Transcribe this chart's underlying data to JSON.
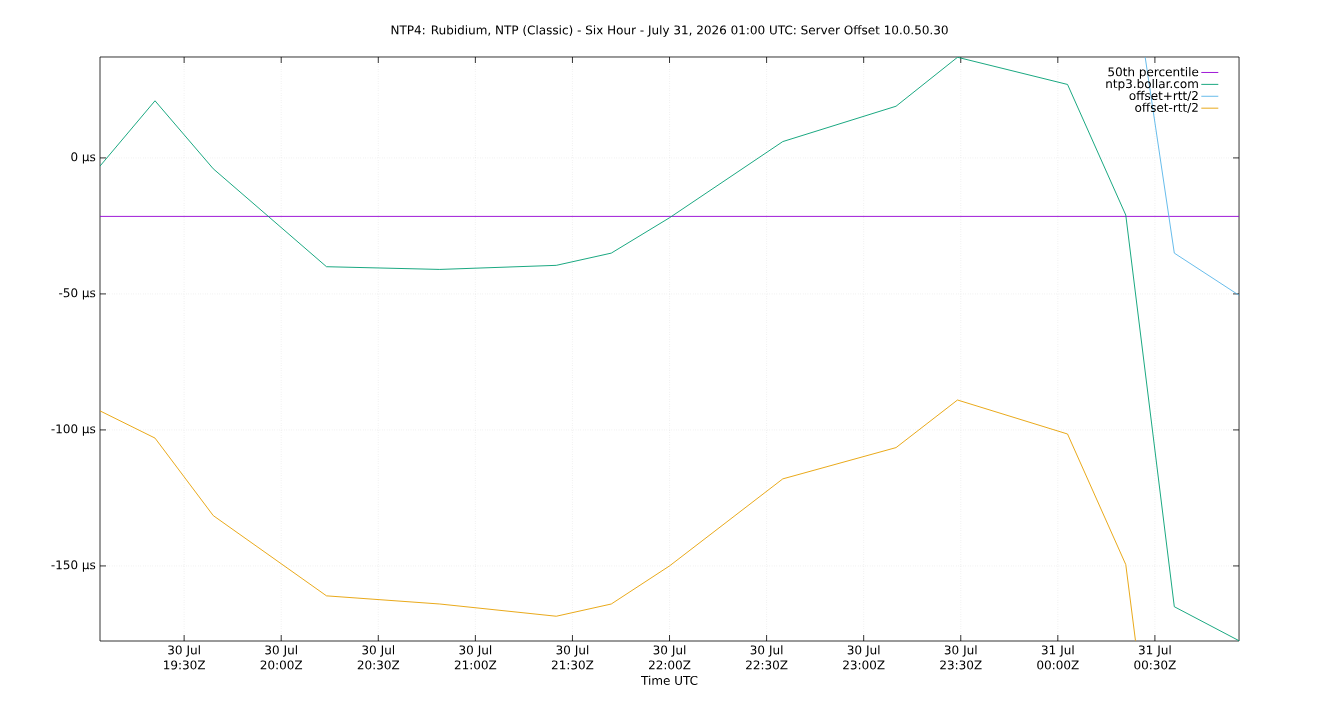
{
  "chart_data": {
    "type": "line",
    "title": "NTP4: Rubidium, NTP (Classic) - Six Hour - July 31, 2026 01:00 UTC: Server Offset 10.0.50.30",
    "xlabel": "Time UTC",
    "xlim": [
      "2026-07-30T19:04",
      "2026-07-31T00:56"
    ],
    "xticks": [
      {
        "value": "2026-07-30T19:30",
        "label": "30 Jul 19:30Z"
      },
      {
        "value": "2026-07-30T20:00",
        "label": "30 Jul 20:00Z"
      },
      {
        "value": "2026-07-30T20:30",
        "label": "30 Jul 20:30Z"
      },
      {
        "value": "2026-07-30T21:00",
        "label": "30 Jul 21:00Z"
      },
      {
        "value": "2026-07-30T21:30",
        "label": "30 Jul 21:30Z"
      },
      {
        "value": "2026-07-30T22:00",
        "label": "30 Jul 22:00Z"
      },
      {
        "value": "2026-07-30T22:30",
        "label": "30 Jul 22:30Z"
      },
      {
        "value": "2026-07-30T23:00",
        "label": "30 Jul 23:00Z"
      },
      {
        "value": "2026-07-30T23:30",
        "label": "30 Jul 23:30Z"
      },
      {
        "value": "2026-07-31T00:00",
        "label": "31 Jul 00:00Z"
      },
      {
        "value": "2026-07-31T00:30",
        "label": "31 Jul 00:30Z"
      }
    ],
    "ylim": [
      -177.6,
      37.1
    ],
    "yticks": [
      {
        "value": -150,
        "label": "-150 µs"
      },
      {
        "value": -100,
        "label": "-100 µs"
      },
      {
        "value": -50,
        "label": "-50 µs"
      },
      {
        "value": 0,
        "label": "0 µs"
      }
    ],
    "grid": true,
    "legend": "top right",
    "line_style": "solid",
    "series": [
      {
        "name": "50th percentile",
        "color": "#9400d3",
        "x": [
          "2026-07-30T19:04",
          "2026-07-31T00:56"
        ],
        "values": [
          -21.5,
          -21.5
        ]
      },
      {
        "name": "ntp3.bollar.com",
        "color": "#009e73",
        "x": [
          "2026-07-30T19:04",
          "2026-07-30T19:21",
          "2026-07-30T19:39",
          "2026-07-30T20:14",
          "2026-07-30T20:49",
          "2026-07-30T21:25",
          "2026-07-30T21:42",
          "2026-07-30T22:00",
          "2026-07-30T22:35",
          "2026-07-30T23:10",
          "2026-07-30T23:29",
          "2026-07-31T00:03",
          "2026-07-31T00:21",
          "2026-07-31T00:36",
          "2026-07-31T00:56"
        ],
        "values": [
          -3,
          21,
          -4,
          -40,
          -41,
          -39.5,
          -35,
          -22,
          6,
          19,
          37,
          27,
          -21,
          -165,
          -177.5
        ]
      },
      {
        "name": "offset+rtt/2",
        "color": "#56b4e9",
        "x": [
          "2026-07-31T00:27",
          "2026-07-31T00:36",
          "2026-07-31T00:56"
        ],
        "values": [
          37,
          -35,
          -50.5
        ]
      },
      {
        "name": "offset-rtt/2",
        "color": "#e69f00",
        "x": [
          "2026-07-30T19:04",
          "2026-07-30T19:21",
          "2026-07-30T19:39",
          "2026-07-30T20:14",
          "2026-07-30T20:49",
          "2026-07-30T21:25",
          "2026-07-30T21:42",
          "2026-07-30T22:00",
          "2026-07-30T22:35",
          "2026-07-30T23:10",
          "2026-07-30T23:29",
          "2026-07-31T00:03",
          "2026-07-31T00:21",
          "2026-07-31T00:24"
        ],
        "values": [
          -93,
          -103,
          -131.5,
          -161,
          -164,
          -168.5,
          -164,
          -150,
          -118,
          -106.5,
          -89,
          -101.5,
          -149.5,
          -177.5
        ]
      }
    ]
  }
}
